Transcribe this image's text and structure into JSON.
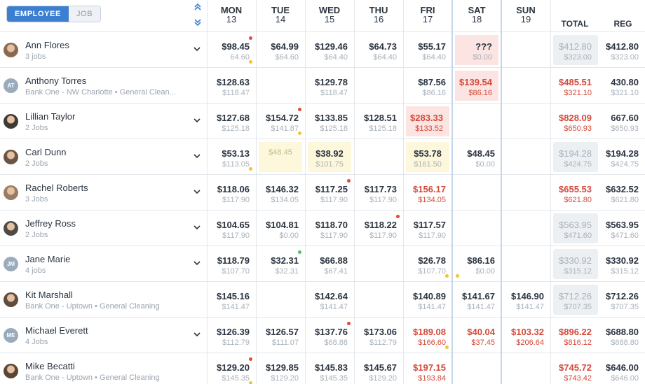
{
  "toggle": {
    "employee": "EMPLOYEE",
    "job": "JOB"
  },
  "days": [
    {
      "name": "MON",
      "date": "13"
    },
    {
      "name": "TUE",
      "date": "14"
    },
    {
      "name": "WED",
      "date": "15"
    },
    {
      "name": "THU",
      "date": "16"
    },
    {
      "name": "FRI",
      "date": "17"
    },
    {
      "name": "SAT",
      "date": "18"
    },
    {
      "name": "SUN",
      "date": "19"
    }
  ],
  "totals_headers": {
    "total": "TOTAL",
    "reg": "REG"
  },
  "colors": {
    "accent": "#3c7fd0",
    "alert_red": "#d44a3a",
    "dot_red": "#e04b3a",
    "dot_yellow": "#f2c434",
    "dot_green": "#4cc25a"
  },
  "employees": [
    {
      "name": "Ann Flores",
      "sub": "3 jobs",
      "avatar": "photo",
      "expandable": true,
      "cells": [
        {
          "v1": "$98.45",
          "v2": "64.60",
          "dots": [
            "red-top",
            "yellow-bottom"
          ]
        },
        {
          "v1": "$64.99",
          "v2": "$64.60"
        },
        {
          "v1": "$129.46",
          "v2": "$64.40"
        },
        {
          "v1": "$64.73",
          "v2": "$64.40"
        },
        {
          "v1": "$55.17",
          "v2": "$64.40"
        },
        {
          "v1": "???",
          "v2": "$0.00",
          "style": "redbg"
        },
        null
      ],
      "total": {
        "v1": "$412.80",
        "v2": "$323.00",
        "style": "gray"
      },
      "reg": {
        "v1": "$412.80",
        "v2": "$323.00"
      }
    },
    {
      "name": "Anthony Torres",
      "sub": "Bank One - NW Charlotte • General Clean...",
      "avatar": "AT",
      "expandable": false,
      "cells": [
        {
          "v1": "$128.63",
          "v2": "$118.47"
        },
        null,
        {
          "v1": "$129.78",
          "v2": "$118.47"
        },
        null,
        {
          "v1": "$87.56",
          "v2": "$86.16"
        },
        {
          "v1": "$139.54",
          "v2": "$86.16",
          "style": "redbg red"
        },
        null
      ],
      "total": {
        "v1": "$485.51",
        "v2": "$321.10",
        "style": "red"
      },
      "reg": {
        "v1": "430.80",
        "v2": "$321.10"
      }
    },
    {
      "name": "Lillian Taylor",
      "sub": "2 Jobs",
      "avatar": "photo",
      "expandable": true,
      "cells": [
        {
          "v1": "$127.68",
          "v2": "$125.18"
        },
        {
          "v1": "$154.72",
          "v2": "$141.87",
          "dots": [
            "red-top",
            "yellow-bottom"
          ]
        },
        {
          "v1": "$133.85",
          "v2": "$125.18"
        },
        {
          "v1": "$128.51",
          "v2": "$125.18"
        },
        {
          "v1": "$283.33",
          "v2": "$133.52",
          "style": "redbg red"
        },
        null,
        null
      ],
      "total": {
        "v1": "$828.09",
        "v2": "$650.93",
        "style": "red"
      },
      "reg": {
        "v1": "667.60",
        "v2": "$650.93"
      }
    },
    {
      "name": "Carl Dunn",
      "sub": "2 Jobs",
      "avatar": "photo",
      "expandable": true,
      "cells": [
        {
          "v1": "$53.13",
          "v2": "$113.05",
          "dots": [
            "yellow-bottom"
          ]
        },
        {
          "v1": "$48.45",
          "v2": "",
          "style": "yelbg faded center"
        },
        {
          "v1": "$38.92",
          "v2": "$101.75",
          "style": "yelbg center"
        },
        null,
        {
          "v1": "$53.78",
          "v2": "$161.50",
          "style": "yelbg center"
        },
        {
          "v1": "$48.45",
          "v2": "$0.00"
        },
        null
      ],
      "total": {
        "v1": "$194.28",
        "v2": "$424.75",
        "style": "gray"
      },
      "reg": {
        "v1": "$194.28",
        "v2": "$424.75"
      }
    },
    {
      "name": "Rachel Roberts",
      "sub": "3 Jobs",
      "avatar": "photo",
      "expandable": true,
      "cells": [
        {
          "v1": "$118.06",
          "v2": "$117.90"
        },
        {
          "v1": "$146.32",
          "v2": "$134.05"
        },
        {
          "v1": "$117.25",
          "v2": "$117.90",
          "dots": [
            "red-top"
          ]
        },
        {
          "v1": "$117.73",
          "v2": "$117.90"
        },
        {
          "v1": "$156.17",
          "v2": "$134.05",
          "style": "red"
        },
        null,
        null
      ],
      "total": {
        "v1": "$655.53",
        "v2": "$621.80",
        "style": "red"
      },
      "reg": {
        "v1": "$632.52",
        "v2": "$621.80"
      }
    },
    {
      "name": "Jeffrey Ross",
      "sub": "2 Jobs",
      "avatar": "photo",
      "expandable": true,
      "cells": [
        {
          "v1": "$104.65",
          "v2": "$117.90"
        },
        {
          "v1": "$104.81",
          "v2": "$0.00"
        },
        {
          "v1": "$118.70",
          "v2": "$117.90"
        },
        {
          "v1": "$118.22",
          "v2": "$117.90",
          "dots": [
            "red-top"
          ]
        },
        {
          "v1": "$117.57",
          "v2": "$117.90"
        },
        null,
        null
      ],
      "total": {
        "v1": "$563.95",
        "v2": "$471.60",
        "style": "gray"
      },
      "reg": {
        "v1": "$563.95",
        "v2": "$471.60"
      }
    },
    {
      "name": "Jane Marie",
      "sub": "4 jobs",
      "avatar": "JM",
      "expandable": true,
      "cells": [
        {
          "v1": "$118.79",
          "v2": "$107.70"
        },
        {
          "v1": "$32.31",
          "v2": "$32.31",
          "dots": [
            "green-top"
          ]
        },
        {
          "v1": "$66.88",
          "v2": "$67.41"
        },
        null,
        {
          "v1": "$26.78",
          "v2": "$107.70",
          "dots": [
            "yellow-bottom"
          ]
        },
        {
          "v1": "$86.16",
          "v2": "$0.00",
          "dots": [
            "yellow-bottom-left"
          ]
        },
        null
      ],
      "total": {
        "v1": "$330.92",
        "v2": "$315.12",
        "style": "gray"
      },
      "reg": {
        "v1": "$330.92",
        "v2": "$315.12"
      }
    },
    {
      "name": "Kit Marshall",
      "sub": "Bank One - Uptown • General Cleaning",
      "avatar": "photo",
      "expandable": false,
      "cells": [
        {
          "v1": "$145.16",
          "v2": "$141.47"
        },
        null,
        {
          "v1": "$142.64",
          "v2": "$141.47"
        },
        null,
        {
          "v1": "$140.89",
          "v2": "$141.47"
        },
        {
          "v1": "$141.67",
          "v2": "$141.47"
        },
        {
          "v1": "$146.90",
          "v2": "$141.47"
        }
      ],
      "total": {
        "v1": "$712.26",
        "v2": "$707.35",
        "style": "gray"
      },
      "reg": {
        "v1": "$712.26",
        "v2": "$707.35"
      }
    },
    {
      "name": "Michael Everett",
      "sub": "4 Jobs",
      "avatar": "ME",
      "expandable": true,
      "cells": [
        {
          "v1": "$126.39",
          "v2": "$112.79"
        },
        {
          "v1": "$126.57",
          "v2": "$111.07"
        },
        {
          "v1": "$137.76",
          "v2": "$68.88",
          "dots": [
            "red-top"
          ]
        },
        {
          "v1": "$173.06",
          "v2": "$112.79"
        },
        {
          "v1": "$189.08",
          "v2": "$166.60",
          "style": "red",
          "dots": [
            "yellow-bottom"
          ]
        },
        {
          "v1": "$40.04",
          "v2": "$37.45",
          "style": "red"
        },
        {
          "v1": "$103.32",
          "v2": "$206.64",
          "style": "red"
        }
      ],
      "total": {
        "v1": "$896.22",
        "v2": "$816.12",
        "style": "red"
      },
      "reg": {
        "v1": "$688.80",
        "v2": "$688.80"
      }
    },
    {
      "name": "Mike Becatti",
      "sub": "Bank One - Uptown • General Cleaning",
      "avatar": "photo",
      "expandable": false,
      "cells": [
        {
          "v1": "$129.20",
          "v2": "$145.35",
          "dots": [
            "red-top",
            "yellow-bottom"
          ]
        },
        {
          "v1": "$129.85",
          "v2": "$129.20"
        },
        {
          "v1": "$145.83",
          "v2": "$145.35"
        },
        {
          "v1": "$145.67",
          "v2": "$129.20"
        },
        {
          "v1": "$197.15",
          "v2": "$193.84",
          "style": "red"
        },
        null,
        null
      ],
      "total": {
        "v1": "$745.72",
        "v2": "$743.42",
        "style": "red"
      },
      "reg": {
        "v1": "$646.00",
        "v2": "$646.00"
      }
    }
  ]
}
